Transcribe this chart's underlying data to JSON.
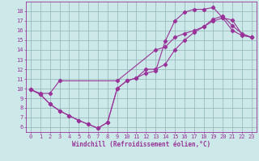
{
  "xlabel": "Windchill (Refroidissement éolien,°C)",
  "bg_color": "#cce8e8",
  "line_color": "#993399",
  "grid_color": "#99bbbb",
  "xlim": [
    -0.5,
    23.5
  ],
  "ylim": [
    5.5,
    19.0
  ],
  "xticks": [
    0,
    1,
    2,
    3,
    4,
    5,
    6,
    7,
    8,
    9,
    10,
    11,
    12,
    13,
    14,
    15,
    16,
    17,
    18,
    19,
    20,
    21,
    22,
    23
  ],
  "yticks": [
    6,
    7,
    8,
    9,
    10,
    11,
    12,
    13,
    14,
    15,
    16,
    17,
    18
  ],
  "line1_x": [
    0,
    1,
    2,
    3,
    4,
    5,
    6,
    7,
    8,
    9,
    10,
    11,
    12,
    13,
    14,
    15,
    16,
    17,
    18,
    19,
    20,
    21,
    22,
    23
  ],
  "line1_y": [
    9.9,
    9.4,
    8.4,
    7.7,
    7.2,
    6.7,
    6.3,
    5.9,
    6.5,
    10.0,
    10.8,
    11.1,
    11.6,
    11.8,
    14.9,
    17.0,
    17.9,
    18.2,
    18.2,
    18.4,
    17.3,
    17.1,
    15.6,
    15.3
  ],
  "line2_x": [
    0,
    1,
    2,
    3,
    4,
    5,
    6,
    7,
    8,
    9,
    10,
    11,
    12,
    13,
    14,
    15,
    16,
    17,
    18,
    19,
    20,
    21,
    22,
    23
  ],
  "line2_y": [
    9.9,
    9.4,
    8.4,
    7.7,
    7.2,
    6.7,
    6.3,
    5.9,
    6.5,
    10.0,
    10.8,
    11.1,
    12.0,
    12.0,
    12.5,
    14.0,
    15.0,
    15.8,
    16.4,
    17.0,
    17.3,
    16.0,
    15.5,
    15.3
  ],
  "line3_x": [
    0,
    1,
    2,
    3,
    9,
    13,
    14,
    15,
    16,
    17,
    18,
    19,
    20,
    21,
    22,
    23
  ],
  "line3_y": [
    9.9,
    9.5,
    9.5,
    10.8,
    10.8,
    14.0,
    14.3,
    15.3,
    15.7,
    16.0,
    16.4,
    17.2,
    17.5,
    16.5,
    15.7,
    15.3
  ],
  "tick_fontsize": 5.0,
  "xlabel_fontsize": 5.5
}
